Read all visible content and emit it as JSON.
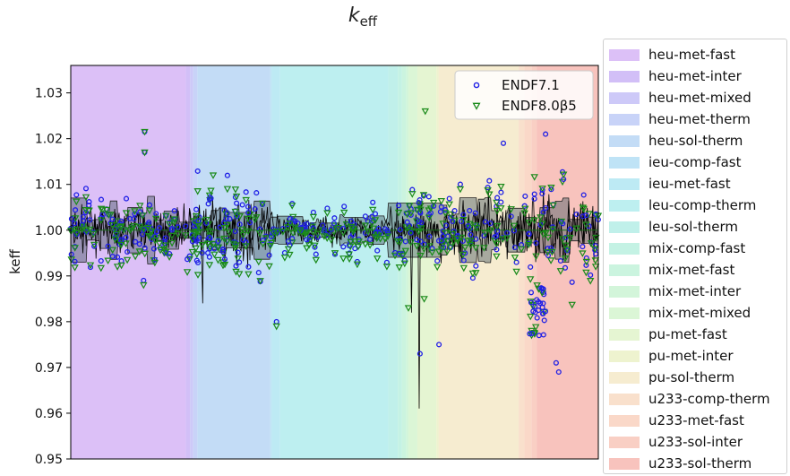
{
  "chart_data": {
    "type": "scatter",
    "title": "k_eff",
    "title_main": "k",
    "title_sub": "eff",
    "xlabel": "",
    "ylabel": "keff",
    "ylim": [
      0.95,
      1.036
    ],
    "y_ticks": [
      0.95,
      0.96,
      0.97,
      0.98,
      0.99,
      1.0,
      1.01,
      1.02,
      1.03
    ],
    "y_tick_labels": [
      "0.95",
      "0.96",
      "0.97",
      "0.98",
      "0.99",
      "1.00",
      "1.01",
      "1.02",
      "1.03"
    ],
    "x_count": 1000,
    "grid": false,
    "series_legend_position": "top-right",
    "category_legend_position": "outside-right",
    "reference_line": 1.0,
    "series": [
      {
        "name": "ENDF7.1",
        "marker": "circle",
        "color": "#1f1fe6"
      },
      {
        "name": "ENDF8.0β5",
        "marker": "triangle-down",
        "color": "#1a8a1a"
      }
    ],
    "series_labels": [
      "ENDF7.1",
      "ENDF8.0β5"
    ],
    "categories": [
      {
        "name": "heu-met-fast",
        "color": "#dcc0f7",
        "x_start": 0,
        "x_end": 218
      },
      {
        "name": "heu-met-inter",
        "color": "#d2bff7",
        "x_start": 218,
        "x_end": 226
      },
      {
        "name": "heu-met-mixed",
        "color": "#cdc9f8",
        "x_start": 226,
        "x_end": 232
      },
      {
        "name": "heu-met-therm",
        "color": "#c8d3f8",
        "x_start": 232,
        "x_end": 240
      },
      {
        "name": "heu-sol-therm",
        "color": "#c3dcf6",
        "x_start": 240,
        "x_end": 378
      },
      {
        "name": "ieu-comp-fast",
        "color": "#bfe3f6",
        "x_start": 378,
        "x_end": 381
      },
      {
        "name": "ieu-met-fast",
        "color": "#bdeaf4",
        "x_start": 381,
        "x_end": 397
      },
      {
        "name": "leu-comp-therm",
        "color": "#bdeff0",
        "x_start": 397,
        "x_end": 602
      },
      {
        "name": "leu-sol-therm",
        "color": "#c0f0ea",
        "x_start": 602,
        "x_end": 620
      },
      {
        "name": "mix-comp-fast",
        "color": "#c4f2e4",
        "x_start": 620,
        "x_end": 628
      },
      {
        "name": "mix-met-fast",
        "color": "#cbf4df",
        "x_start": 628,
        "x_end": 636
      },
      {
        "name": "mix-met-inter",
        "color": "#d3f5da",
        "x_start": 636,
        "x_end": 640
      },
      {
        "name": "mix-met-mixed",
        "color": "#dbf6d6",
        "x_start": 640,
        "x_end": 657
      },
      {
        "name": "pu-met-fast",
        "color": "#e5f5d2",
        "x_start": 657,
        "x_end": 693
      },
      {
        "name": "pu-met-inter",
        "color": "#eef3cf",
        "x_start": 693,
        "x_end": 697
      },
      {
        "name": "pu-sol-therm",
        "color": "#f6ecd0",
        "x_start": 697,
        "x_end": 849
      },
      {
        "name": "u233-comp-therm",
        "color": "#f9e0cc",
        "x_start": 849,
        "x_end": 860
      },
      {
        "name": "u233-met-fast",
        "color": "#fad8c8",
        "x_start": 860,
        "x_end": 873
      },
      {
        "name": "u233-sol-inter",
        "color": "#f9cfc4",
        "x_start": 873,
        "x_end": 883
      },
      {
        "name": "u233-sol-therm",
        "color": "#f8c3bd",
        "x_start": 883,
        "x_end": 1000
      }
    ],
    "category_legend_order": [
      "heu-met-fast",
      "heu-met-inter",
      "heu-met-mixed",
      "heu-met-therm",
      "heu-sol-therm",
      "ieu-comp-fast",
      "ieu-met-fast",
      "leu-comp-therm",
      "leu-sol-therm",
      "mix-comp-fast",
      "mix-met-fast",
      "mix-met-inter",
      "mix-met-mixed",
      "pu-met-fast",
      "pu-met-inter",
      "pu-sol-therm",
      "u233-comp-therm",
      "u233-met-fast",
      "u233-sol-inter",
      "u233-sol-therm"
    ],
    "notable_points": [
      {
        "series": "ENDF7.1",
        "x": 140,
        "y": 1.0215
      },
      {
        "series": "ENDF8.0β5",
        "x": 140,
        "y": 1.0215
      },
      {
        "series": "ENDF7.1",
        "x": 140,
        "y": 1.017
      },
      {
        "series": "ENDF8.0β5",
        "x": 140,
        "y": 1.017
      },
      {
        "series": "ENDF7.1",
        "x": 138,
        "y": 0.989
      },
      {
        "series": "ENDF8.0β5",
        "x": 138,
        "y": 0.988
      },
      {
        "series": "ENDF7.1",
        "x": 390,
        "y": 0.98
      },
      {
        "series": "ENDF8.0β5",
        "x": 390,
        "y": 0.979
      },
      {
        "series": "ENDF7.1",
        "x": 662,
        "y": 0.973
      },
      {
        "series": "ENDF8.0β5",
        "x": 672,
        "y": 1.026
      },
      {
        "series": "ENDF7.1",
        "x": 698,
        "y": 0.975
      },
      {
        "series": "ENDF7.1",
        "x": 701,
        "y": 1.004
      },
      {
        "series": "ENDF7.1",
        "x": 900,
        "y": 1.021
      },
      {
        "series": "ENDF7.1",
        "x": 920,
        "y": 0.971
      },
      {
        "series": "ENDF7.1",
        "x": 925,
        "y": 0.969
      },
      {
        "series": "ENDF7.1",
        "x": 660,
        "y": 1.006
      },
      {
        "series": "ENDF8.0β5",
        "x": 670,
        "y": 0.985
      },
      {
        "series": "ENDF8.0β5",
        "x": 640,
        "y": 0.983
      },
      {
        "series": "ENDF7.1",
        "x": 820,
        "y": 1.019
      },
      {
        "series": "ENDF8.0β5",
        "x": 270,
        "y": 1.012
      }
    ]
  }
}
